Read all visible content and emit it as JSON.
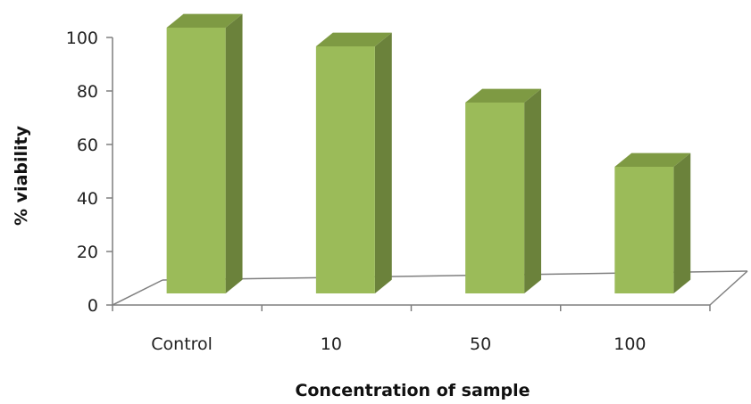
{
  "chart_data": {
    "type": "bar",
    "title": "",
    "xlabel": "Concentration of sample",
    "ylabel": "% viability",
    "categories": [
      "Control",
      "10",
      "50",
      "100"
    ],
    "values": [
      100,
      93,
      72,
      48
    ],
    "ylim": [
      0,
      100
    ],
    "yticks": [
      0,
      20,
      40,
      60,
      80,
      100
    ],
    "style": "3d-column",
    "grid": false,
    "legend": "none"
  },
  "colors": {
    "bar_front": "#9bbb59",
    "bar_side": "#6b823b",
    "bar_top": "#7e9a43",
    "floor_line": "#7f7f7f"
  }
}
